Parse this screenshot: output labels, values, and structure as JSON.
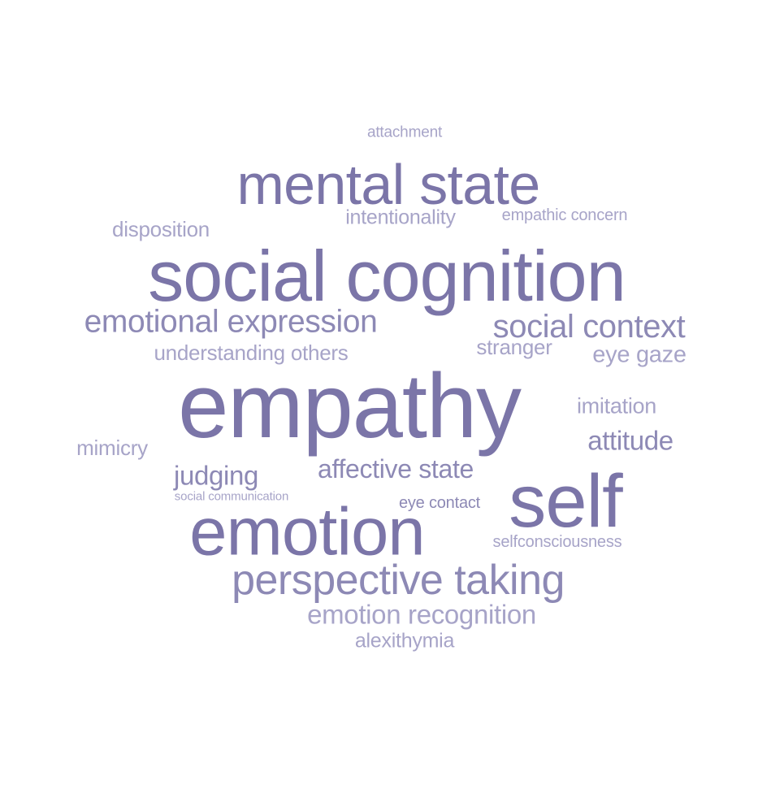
{
  "palette": {
    "strong": "#7b75a8",
    "medium": "#8d89b5",
    "light": "#a7a4c8"
  },
  "words": [
    {
      "text": "attachment",
      "rank": 30
    },
    {
      "text": "mental state",
      "rank": 4
    },
    {
      "text": "disposition",
      "rank": 22
    },
    {
      "text": "intentionality",
      "rank": 23
    },
    {
      "text": "empathic concern",
      "rank": 28
    },
    {
      "text": "social cognition",
      "rank": 2
    },
    {
      "text": "emotional expression",
      "rank": 8
    },
    {
      "text": "social context",
      "rank": 7
    },
    {
      "text": "understanding others",
      "rank": 20
    },
    {
      "text": "stranger",
      "rank": 21
    },
    {
      "text": "eye gaze",
      "rank": 18
    },
    {
      "text": "empathy",
      "rank": 1
    },
    {
      "text": "imitation",
      "rank": 19
    },
    {
      "text": "attitude",
      "rank": 16
    },
    {
      "text": "mimicry",
      "rank": 24
    },
    {
      "text": "affective state",
      "rank": 12
    },
    {
      "text": "judging",
      "rank": 13
    },
    {
      "text": "social communication",
      "rank": 31
    },
    {
      "text": "eye contact",
      "rank": 26
    },
    {
      "text": "self",
      "rank": 5
    },
    {
      "text": "emotion",
      "rank": 3
    },
    {
      "text": "selfconsciousness",
      "rank": 27
    },
    {
      "text": "perspective taking",
      "rank": 6
    },
    {
      "text": "emotion recognition",
      "rank": 11
    },
    {
      "text": "alexithymia",
      "rank": 25
    }
  ]
}
